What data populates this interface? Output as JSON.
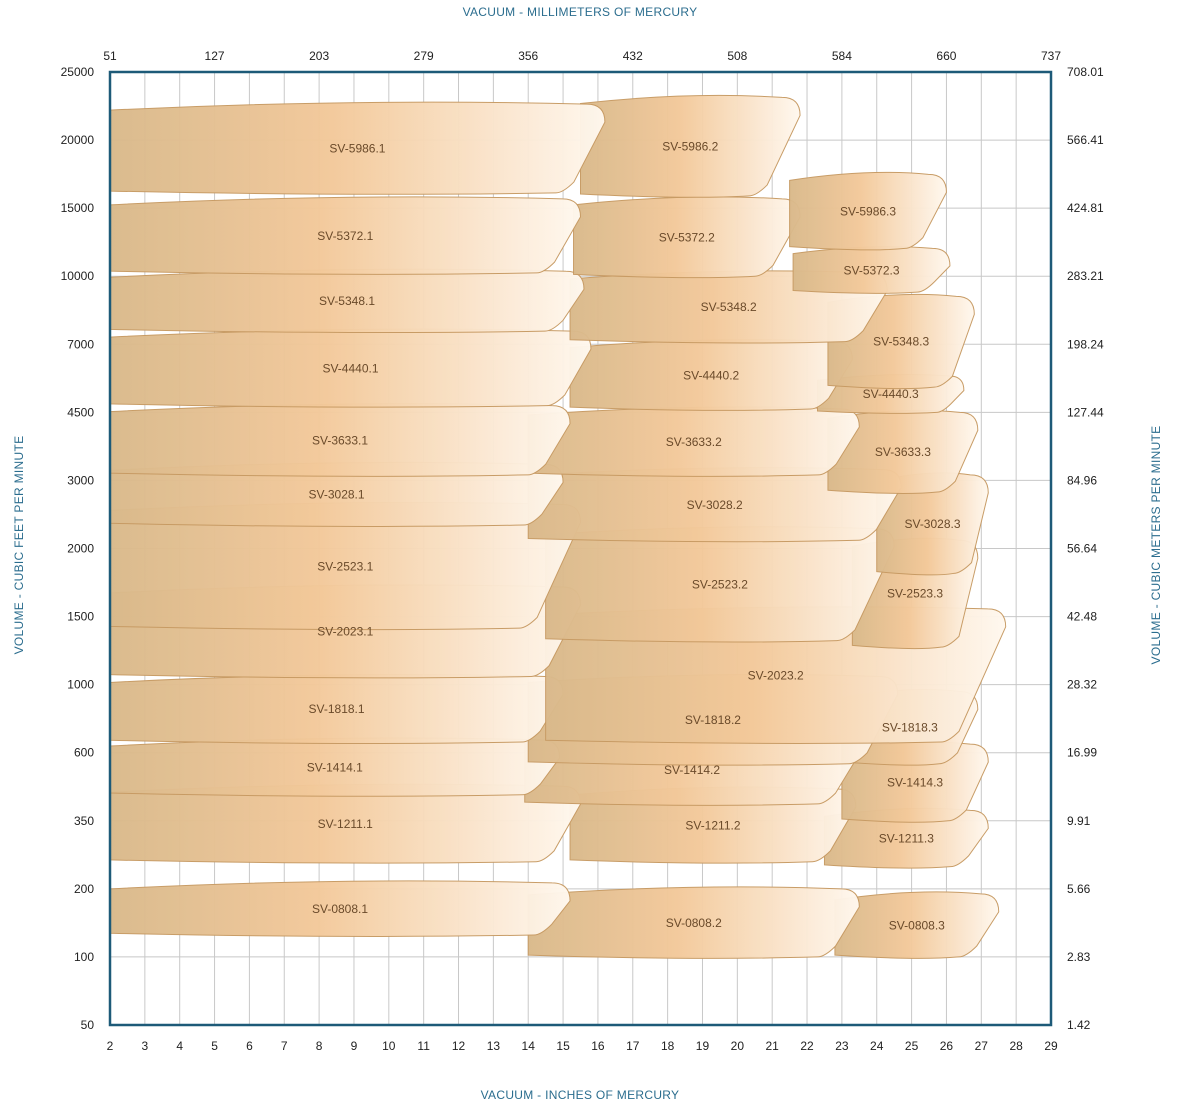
{
  "chart_data": {
    "type": "area",
    "titles": {
      "top": "VACUUM  -  MILLIMETERS OF MERCURY",
      "bottom": "VACUUM  -  INCHES OF MERCURY",
      "left": "VOLUME  -  CUBIC  FEET  PER  MINUTE",
      "right": "VOLUME  -  CUBIC  METERS  PER  MINUTE"
    },
    "xlim": [
      2,
      29
    ],
    "x_ticks": [
      2,
      3,
      4,
      5,
      6,
      7,
      8,
      9,
      10,
      11,
      12,
      13,
      14,
      15,
      16,
      17,
      18,
      19,
      20,
      21,
      22,
      23,
      24,
      25,
      26,
      27,
      28,
      29
    ],
    "x_top_ticks": [
      {
        "x": 2,
        "label": "51"
      },
      {
        "x": 5,
        "label": "127"
      },
      {
        "x": 8,
        "label": "203"
      },
      {
        "x": 11,
        "label": "279"
      },
      {
        "x": 14,
        "label": "356"
      },
      {
        "x": 17,
        "label": "432"
      },
      {
        "x": 20,
        "label": "508"
      },
      {
        "x": 23,
        "label": "584"
      },
      {
        "x": 26,
        "label": "660"
      },
      {
        "x": 29,
        "label": "737"
      }
    ],
    "y_ticks": [
      {
        "label": "25000",
        "right": "708.01"
      },
      {
        "label": "20000",
        "right": "566.41"
      },
      {
        "label": "15000",
        "right": "424.81"
      },
      {
        "label": "10000",
        "right": "283.21"
      },
      {
        "label": "7000",
        "right": "198.24"
      },
      {
        "label": "4500",
        "right": "127.44"
      },
      {
        "label": "3000",
        "right": "84.96"
      },
      {
        "label": "2000",
        "right": "56.64"
      },
      {
        "label": "1500",
        "right": "42.48"
      },
      {
        "label": "1000",
        "right": "28.32"
      },
      {
        "label": "600",
        "right": "16.99"
      },
      {
        "label": "350",
        "right": "9.91"
      },
      {
        "label": "200",
        "right": "5.66"
      },
      {
        "label": "100",
        "right": "2.83"
      },
      {
        "label": "50",
        "right": "1.42"
      }
    ],
    "colors": {
      "frame": "#1d5a78",
      "grid": "#c8c8c8",
      "tick_text": "#222222",
      "fill_dark": "#d9b98b",
      "fill_mid": "#f3c99a",
      "fill_light": "#fff8ef",
      "outline": "#c79a63",
      "label_text": "#6a4a2a"
    },
    "series": [
      {
        "name": "SV-5986.1",
        "x": [
          2,
          16.2
        ],
        "cfm": [
          16000,
          22500
        ]
      },
      {
        "name": "SV-5986.2",
        "x": [
          15.5,
          21.8
        ],
        "cfm": [
          15800,
          23000
        ]
      },
      {
        "name": "SV-5986.3",
        "x": [
          21.5,
          26
        ],
        "cfm": [
          11800,
          17300
        ]
      },
      {
        "name": "SV-5372.1",
        "x": [
          2,
          15.5
        ],
        "cfm": [
          10200,
          15600
        ]
      },
      {
        "name": "SV-5372.2",
        "x": [
          15.3,
          21.8
        ],
        "cfm": [
          10000,
          15600
        ]
      },
      {
        "name": "SV-5372.3",
        "x": [
          21.6,
          26.1
        ],
        "cfm": [
          9200,
          11800
        ]
      },
      {
        "name": "SV-5348.1",
        "x": [
          2,
          15.6
        ],
        "cfm": [
          7500,
          10300
        ]
      },
      {
        "name": "SV-5348.2",
        "x": [
          15.2,
          24.3
        ],
        "cfm": [
          7100,
          10200
        ]
      },
      {
        "name": "SV-5348.3",
        "x": [
          22.6,
          26.8
        ],
        "cfm": [
          5300,
          9000
        ]
      },
      {
        "name": "SV-4440.1",
        "x": [
          2,
          15.8
        ],
        "cfm": [
          4700,
          7500
        ]
      },
      {
        "name": "SV-4440.2",
        "x": [
          15.2,
          23.3
        ],
        "cfm": [
          4600,
          7100
        ]
      },
      {
        "name": "SV-4440.3",
        "x": [
          22.3,
          26.5
        ],
        "cfm": [
          4500,
          5700
        ]
      },
      {
        "name": "SV-3633.1",
        "x": [
          2,
          15.2
        ],
        "cfm": [
          3100,
          4700
        ]
      },
      {
        "name": "SV-3633.2",
        "x": [
          14,
          23.5
        ],
        "cfm": [
          3100,
          4600
        ]
      },
      {
        "name": "SV-3633.3",
        "x": [
          22.6,
          26.9
        ],
        "cfm": [
          2800,
          4500
        ]
      },
      {
        "name": "SV-3028.1",
        "x": [
          2,
          15
        ],
        "cfm": [
          2300,
          3300
        ]
      },
      {
        "name": "SV-3028.2",
        "x": [
          14,
          24.7
        ],
        "cfm": [
          2100,
          3200
        ]
      },
      {
        "name": "SV-3028.3",
        "x": [
          24,
          27.2
        ],
        "cfm": [
          1800,
          3100
        ]
      },
      {
        "name": "SV-2523.1",
        "x": [
          2,
          15.5
        ],
        "cfm": [
          1400,
          2600
        ]
      },
      {
        "name": "SV-2523.2",
        "x": [
          14.5,
          24.5
        ],
        "cfm": [
          1300,
          2250
        ]
      },
      {
        "name": "SV-2523.3",
        "x": [
          23.3,
          26.9
        ],
        "cfm": [
          1250,
          2100
        ]
      },
      {
        "name": "SV-2023.1",
        "x": [
          2,
          15.5
        ],
        "cfm": [
          1050,
          1700
        ]
      },
      {
        "name": "SV-2023.2",
        "x": [
          14.5,
          27.7
        ],
        "cfm": [
          650,
          1550
        ]
      },
      {
        "name": "SV-1818.1",
        "x": [
          2,
          15
        ],
        "cfm": [
          650,
          1050
        ]
      },
      {
        "name": "SV-1818.2",
        "x": [
          14,
          24.6
        ],
        "cfm": [
          550,
          1050
        ]
      },
      {
        "name": "SV-1818.3",
        "x": [
          23,
          26.9
        ],
        "cfm": [
          550,
          950
        ]
      },
      {
        "name": "SV-1414.1",
        "x": [
          2,
          14.9
        ],
        "cfm": [
          430,
          660
        ]
      },
      {
        "name": "SV-1414.2",
        "x": [
          13.9,
          23.5
        ],
        "cfm": [
          400,
          680
        ]
      },
      {
        "name": "SV-1414.3",
        "x": [
          23,
          27.2
        ],
        "cfm": [
          350,
          640
        ]
      },
      {
        "name": "SV-1211.1",
        "x": [
          2,
          15.5
        ],
        "cfm": [
          250,
          460
        ]
      },
      {
        "name": "SV-1211.2",
        "x": [
          15.2,
          23.4
        ],
        "cfm": [
          250,
          450
        ]
      },
      {
        "name": "SV-1211.3",
        "x": [
          22.5,
          27.2
        ],
        "cfm": [
          240,
          380
        ]
      },
      {
        "name": "SV-0808.1",
        "x": [
          2,
          15.2
        ],
        "cfm": [
          125,
          210
        ]
      },
      {
        "name": "SV-0808.2",
        "x": [
          14,
          23.5
        ],
        "cfm": [
          100,
          200
        ]
      },
      {
        "name": "SV-0808.3",
        "x": [
          22.8,
          27.5
        ],
        "cfm": [
          100,
          190
        ]
      }
    ]
  }
}
